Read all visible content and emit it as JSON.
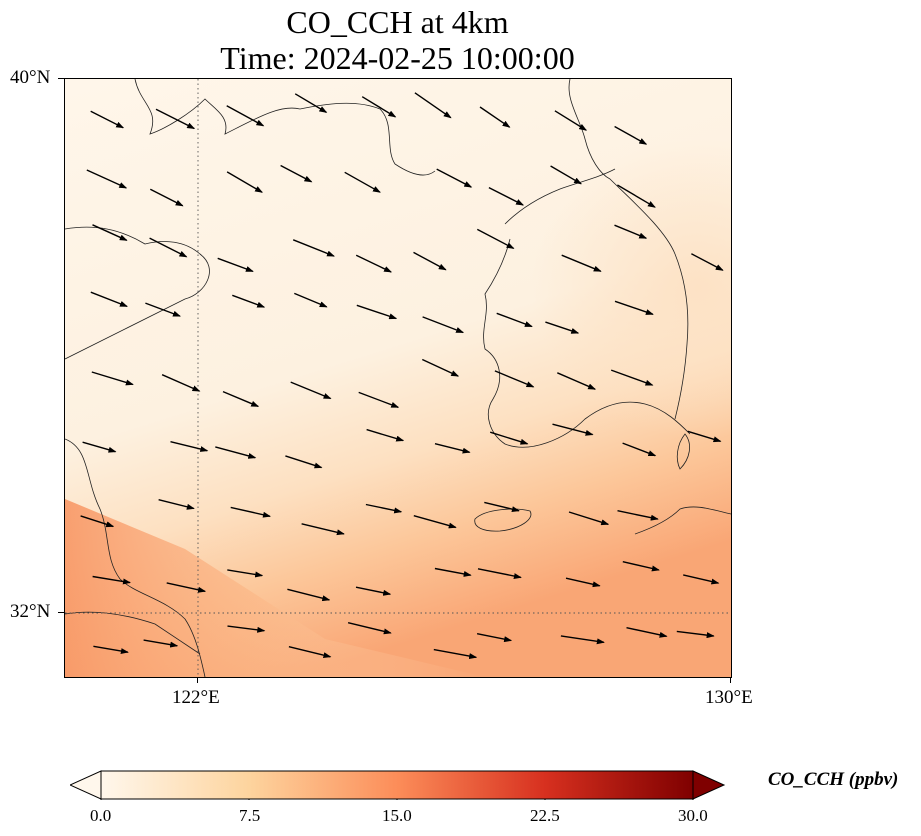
{
  "title": {
    "line1": "CO_CCH at 4km",
    "line2": "Time: 2024-02-25 10:00:00"
  },
  "map": {
    "lat_ticks": [
      "40°N",
      "32°N"
    ],
    "lon_ticks": [
      "122°E",
      "130°E"
    ],
    "lat_range": [
      31,
      40
    ],
    "lon_range": [
      120,
      130
    ],
    "gridlines": true,
    "gridline_style": "dotted",
    "background_colors": {
      "low": "#fff5eb",
      "mid": "#fdd9b4",
      "high": "#f79a64"
    },
    "overlay": "wind-vectors",
    "coastline_color": "#000000"
  },
  "colorbar": {
    "title": "CO_CCH (ppbv)",
    "ticks": [
      "0.0",
      "7.5",
      "15.0",
      "22.5",
      "30.0"
    ],
    "min": 0,
    "max": 30,
    "extend": "both",
    "colormap": "OrRd",
    "colors": [
      "#fff7ec",
      "#fdd49e",
      "#fc8d59",
      "#d7301f",
      "#7f0000"
    ]
  }
}
